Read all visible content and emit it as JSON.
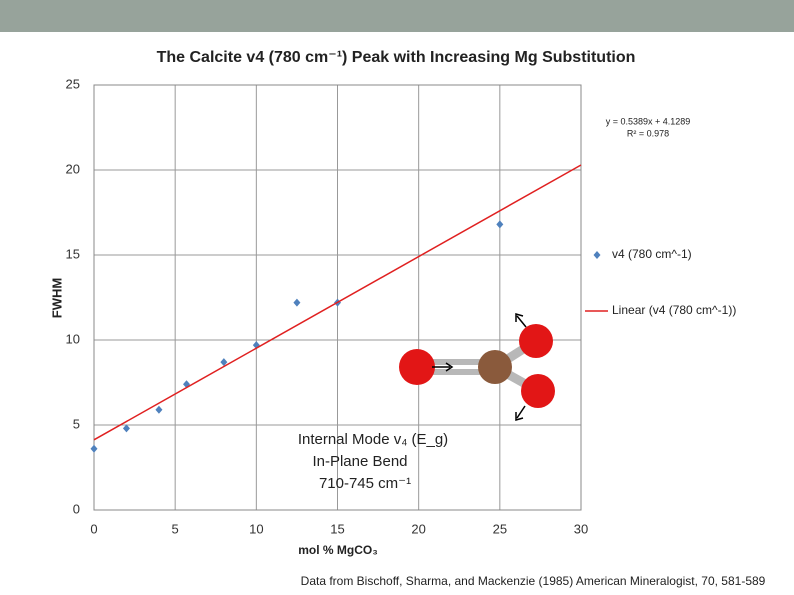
{
  "chart_data": {
    "type": "scatter",
    "title": "The Calcite v4 (780 cm⁻¹) Peak with Increasing Mg Substitution",
    "xlabel": "mol % MgCO₃",
    "ylabel": "FWHM",
    "xlim": [
      0,
      30
    ],
    "ylim": [
      0,
      25
    ],
    "xticks": [
      0,
      5,
      10,
      15,
      20,
      25,
      30
    ],
    "yticks": [
      0,
      5,
      10,
      15,
      20,
      25
    ],
    "grid": true,
    "series": [
      {
        "name": "v4  (780 cm^-1)",
        "color": "#4f81bd",
        "marker": "diamond",
        "x": [
          0,
          2,
          4,
          5.7,
          8,
          10,
          12.5,
          15,
          25
        ],
        "values": [
          3.6,
          4.8,
          5.9,
          7.4,
          8.7,
          9.7,
          12.2,
          12.2,
          16.8
        ]
      },
      {
        "name": "Linear (v4  (780 cm^-1))",
        "color": "#e02020",
        "marker": "line",
        "x": [
          0,
          30
        ],
        "values": [
          4.1289,
          20.2959
        ]
      }
    ],
    "annotations": [
      "y = 0.5389x + 4.1289",
      "R² = 0.978"
    ]
  },
  "inset": [
    "Internal Mode v₄ (E_g)",
    "In-Plane Bend",
    "710-745 cm⁻¹"
  ],
  "source": "Data from Bischoff, Sharma, and Mackenzie (1985) American Mineralogist, 70, 581-589"
}
